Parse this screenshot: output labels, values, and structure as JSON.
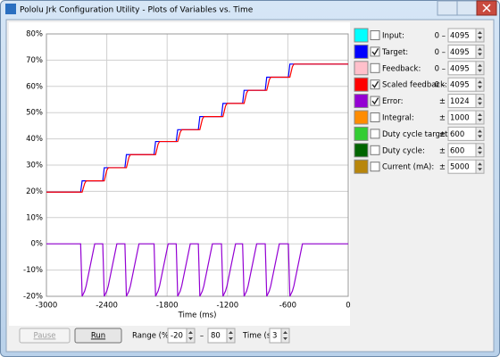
{
  "window": {
    "title": "Pololu Jrk Configuration Utility - Plots of Variables vs. Time"
  },
  "channels": [
    {
      "name": "Input:",
      "color": "#00ffff",
      "checked": false,
      "prefix": "0 –",
      "max": 4095
    },
    {
      "name": "Target:",
      "color": "#0000ff",
      "checked": true,
      "prefix": "0 –",
      "max": 4095
    },
    {
      "name": "Feedback:",
      "color": "#ffc0cb",
      "checked": false,
      "prefix": "0 –",
      "max": 4095
    },
    {
      "name": "Scaled feedback:",
      "color": "#ff0000",
      "checked": true,
      "prefix": "0 –",
      "max": 4095
    },
    {
      "name": "Error:",
      "color": "#9400d3",
      "checked": true,
      "prefix": "±",
      "max": 1024
    },
    {
      "name": "Integral:",
      "color": "#ff8c00",
      "checked": false,
      "prefix": "±",
      "max": 1000
    },
    {
      "name": "Duty cycle target:",
      "color": "#32cd32",
      "checked": false,
      "prefix": "±",
      "max": 600
    },
    {
      "name": "Duty cycle:",
      "color": "#006400",
      "checked": false,
      "prefix": "±",
      "max": 600
    },
    {
      "name": "Current (mA):",
      "color": "#b8860b",
      "checked": false,
      "prefix": "±",
      "max": 5000
    }
  ],
  "controls": {
    "pause": "Pause",
    "run": "Run",
    "range_label": "Range (%):",
    "range_min": -20,
    "range_sep": "–",
    "range_max": 80,
    "time_label": "Time (s):",
    "time": 3
  },
  "chart_data": {
    "type": "line",
    "x_label": "Time (ms)",
    "x": [
      -3000,
      -2660,
      -2645,
      -2620,
      -2605,
      -2520,
      -2440,
      -2425,
      -2400,
      -2385,
      -2300,
      -2220,
      -2205,
      -2180,
      -2165,
      -2080,
      -1930,
      -1915,
      -1890,
      -1875,
      -1790,
      -1710,
      -1695,
      -1670,
      -1655,
      -1570,
      -1490,
      -1475,
      -1450,
      -1435,
      -1350,
      -1260,
      -1245,
      -1220,
      -1205,
      -1120,
      -1050,
      -1035,
      -1010,
      -995,
      -910,
      -825,
      -810,
      -785,
      -770,
      -685,
      -595,
      -580,
      -555,
      -540,
      -455,
      0
    ],
    "series": [
      {
        "channel": 1,
        "values": [
          19.7,
          19.7,
          24,
          24,
          24,
          24,
          24,
          29,
          29,
          29,
          29,
          29,
          34,
          34,
          34,
          34,
          34,
          39,
          39,
          39,
          39,
          39,
          43.5,
          43.5,
          43.5,
          43.5,
          43.5,
          48.5,
          48.5,
          48.5,
          48.5,
          48.5,
          53.5,
          53.5,
          53.5,
          53.5,
          53.5,
          58.5,
          58.5,
          58.5,
          58.5,
          58.5,
          63.5,
          63.5,
          63.5,
          63.5,
          63.5,
          68.5,
          68.5,
          68.5,
          68.5,
          68.5
        ]
      },
      {
        "channel": 3,
        "values": [
          19.7,
          19.7,
          19.7,
          23,
          24,
          24,
          24,
          24,
          28,
          29,
          29,
          29,
          29,
          33,
          34,
          34,
          34,
          34,
          38,
          39,
          39,
          39,
          39,
          42.5,
          43.5,
          43.5,
          43.5,
          43.5,
          47.5,
          48.5,
          48.5,
          48.5,
          48.5,
          52.5,
          53.5,
          53.5,
          53.5,
          53.5,
          57.5,
          58.5,
          58.5,
          58.5,
          58.5,
          62.5,
          63.5,
          63.5,
          63.5,
          63.5,
          67.5,
          68.5,
          68.5,
          68.5
        ]
      },
      {
        "channel": 4,
        "values": [
          0,
          0,
          -20,
          -18,
          -16,
          0,
          0,
          -20,
          -18,
          -16,
          0,
          0,
          -20,
          -18,
          -16,
          0,
          0,
          -20,
          -18,
          -16,
          0,
          0,
          -20,
          -18,
          -16,
          0,
          0,
          -20,
          -18,
          -16,
          0,
          0,
          -20,
          -18,
          -16,
          0,
          0,
          -20,
          -18,
          -16,
          0,
          0,
          -20,
          -18,
          -16,
          0,
          0,
          -20,
          -18,
          -16,
          0,
          0
        ]
      }
    ],
    "xlim": [
      -3000,
      0
    ],
    "xticks": [
      -3000,
      -2400,
      -1800,
      -1200,
      -600,
      0
    ],
    "ylim": [
      -20,
      80
    ],
    "yticks": [
      {
        "value": -20,
        "label": "-20%"
      },
      {
        "value": -10,
        "label": "-10%"
      },
      {
        "value": 0,
        "label": "0%"
      },
      {
        "value": 10,
        "label": "10%"
      },
      {
        "value": 20,
        "label": "20%"
      },
      {
        "value": 30,
        "label": "30%"
      },
      {
        "value": 40,
        "label": "40%"
      },
      {
        "value": 50,
        "label": "50%"
      },
      {
        "value": 60,
        "label": "60%"
      },
      {
        "value": 70,
        "label": "70%"
      },
      {
        "value": 80,
        "label": "80%"
      }
    ],
    "grid": true
  }
}
